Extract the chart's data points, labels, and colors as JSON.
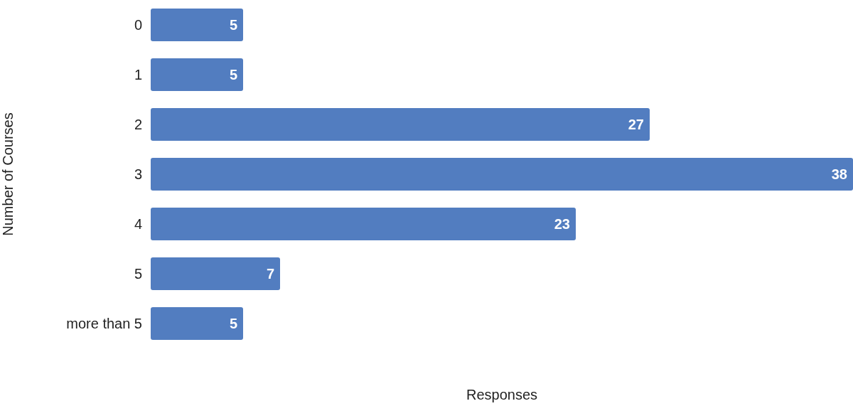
{
  "chart_data": {
    "type": "bar",
    "orientation": "horizontal",
    "xlabel": "Responses",
    "ylabel": "Number of Courses",
    "categories": [
      "0",
      "1",
      "2",
      "3",
      "4",
      "5",
      "more than 5"
    ],
    "values": [
      5,
      5,
      27,
      38,
      23,
      7,
      5
    ],
    "color": "#527dc0",
    "data_labels": true
  }
}
